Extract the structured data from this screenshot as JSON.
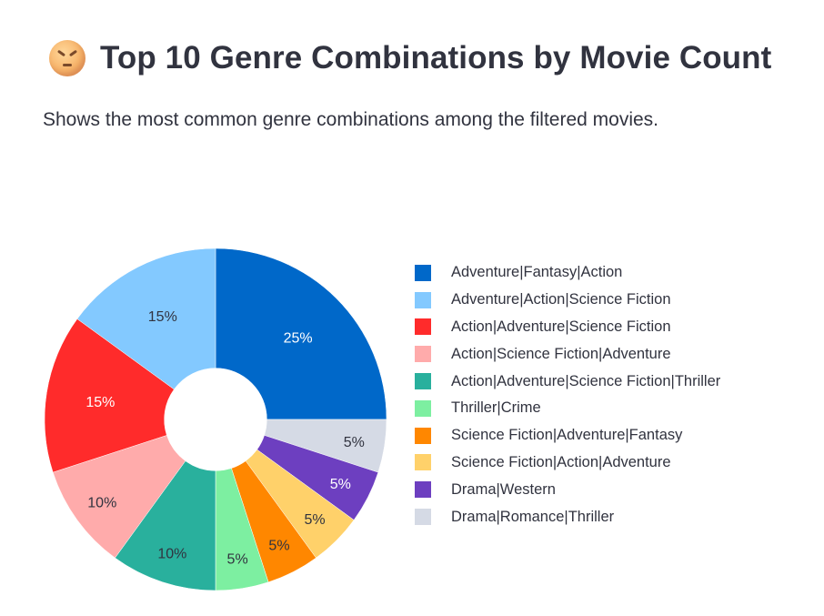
{
  "header": {
    "title": "Top 10 Genre Combinations by Movie Count",
    "subtitle": "Shows the most common genre combinations among the filtered movies.",
    "emoji_icon": "face-with-crossed-out-eyes-icon"
  },
  "chart_data": {
    "type": "pie",
    "hole": 0.3,
    "title": "",
    "legend_position": "right",
    "slices": [
      {
        "label": "Adventure|Fantasy|Action",
        "value": 25,
        "text": "25%",
        "color": "#0068c9",
        "text_color": "#ffffff"
      },
      {
        "label": "Drama|Romance|Thriller",
        "value": 5,
        "text": "5%",
        "color": "#d5dae5",
        "text_color": "#31333f"
      },
      {
        "label": "Drama|Western",
        "value": 5,
        "text": "5%",
        "color": "#6d3fc0",
        "text_color": "#ffffff"
      },
      {
        "label": "Science Fiction|Action|Adventure",
        "value": 5,
        "text": "5%",
        "color": "#ffd16a",
        "text_color": "#31333f"
      },
      {
        "label": "Science Fiction|Adventure|Fantasy",
        "value": 5,
        "text": "5%",
        "color": "#ff8700",
        "text_color": "#31333f"
      },
      {
        "label": "Thriller|Crime",
        "value": 5,
        "text": "5%",
        "color": "#7defa1",
        "text_color": "#31333f"
      },
      {
        "label": "Action|Adventure|Science Fiction|Thriller",
        "value": 10,
        "text": "10%",
        "color": "#29b09d",
        "text_color": "#31333f"
      },
      {
        "label": "Action|Science Fiction|Adventure",
        "value": 10,
        "text": "10%",
        "color": "#ffabab",
        "text_color": "#31333f"
      },
      {
        "label": "Action|Adventure|Science Fiction",
        "value": 15,
        "text": "15%",
        "color": "#ff2b2b",
        "text_color": "#ffffff"
      },
      {
        "label": "Adventure|Action|Science Fiction",
        "value": 15,
        "text": "15%",
        "color": "#83c9ff",
        "text_color": "#31333f"
      }
    ],
    "legend": [
      {
        "label": "Adventure|Fantasy|Action",
        "color": "#0068c9"
      },
      {
        "label": "Adventure|Action|Science Fiction",
        "color": "#83c9ff"
      },
      {
        "label": "Action|Adventure|Science Fiction",
        "color": "#ff2b2b"
      },
      {
        "label": "Action|Science Fiction|Adventure",
        "color": "#ffabab"
      },
      {
        "label": "Action|Adventure|Science Fiction|Thriller",
        "color": "#29b09d"
      },
      {
        "label": "Thriller|Crime",
        "color": "#7defa1"
      },
      {
        "label": "Science Fiction|Adventure|Fantasy",
        "color": "#ff8700"
      },
      {
        "label": "Science Fiction|Action|Adventure",
        "color": "#ffd16a"
      },
      {
        "label": "Drama|Western",
        "color": "#6d3fc0"
      },
      {
        "label": "Drama|Romance|Thriller",
        "color": "#d5dae5"
      }
    ]
  }
}
